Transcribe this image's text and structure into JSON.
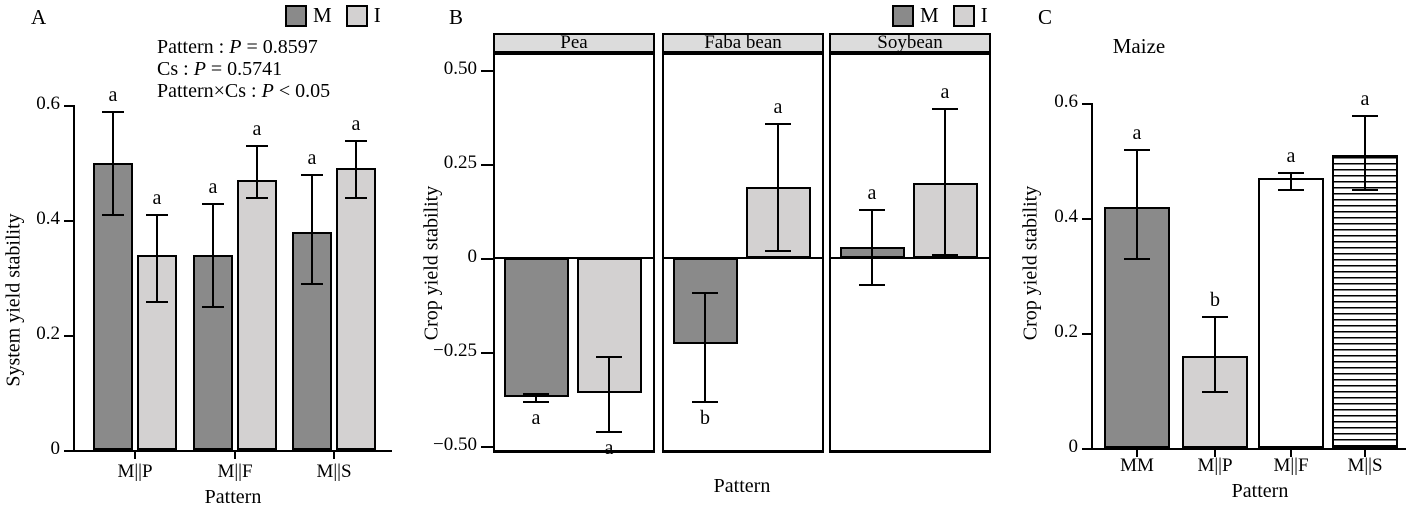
{
  "panel_a": {
    "label": "A",
    "legend": {
      "m": "M",
      "i": "I"
    },
    "stats_lines": [
      "Pattern : P = 0.8597",
      "Cs : P = 0.5741",
      "Pattern×Cs : P < 0.05"
    ],
    "ylabel": "System yield stability",
    "xlabel": "Pattern"
  },
  "panel_b": {
    "label": "B",
    "legend": {
      "m": "M",
      "i": "I"
    },
    "ylabel": "Crop yield stability",
    "xlabel": "Pattern"
  },
  "panel_c": {
    "label": "C",
    "title": "Maize",
    "ylabel": "Crop yield stability",
    "xlabel": "Pattern"
  },
  "colors": {
    "m_fill": "#8a8a8a",
    "i_fill": "#d3d1d1",
    "strip_bg": "#dcdcdc",
    "bar_border": "#000000",
    "white": "#ffffff"
  },
  "chart_data": [
    {
      "id": "A",
      "type": "bar",
      "title": "",
      "annotations": [
        "Pattern : P = 0.8597",
        "Cs : P = 0.5741",
        "Pattern×Cs : P < 0.05"
      ],
      "xlabel": "Pattern",
      "ylabel": "System yield stability",
      "ylim": [
        0,
        0.6
      ],
      "yticks": [
        0,
        0.2,
        0.4,
        0.6
      ],
      "ytick_labels": [
        "0",
        "0.2",
        "0.4",
        "0.6"
      ],
      "categories": [
        "M||P",
        "M||F",
        "M||S"
      ],
      "legend_position": "top",
      "grid": false,
      "series": [
        {
          "name": "M",
          "values": [
            0.5,
            0.34,
            0.38
          ],
          "err_low": [
            0.41,
            0.25,
            0.29
          ],
          "err_high": [
            0.59,
            0.43,
            0.48
          ],
          "letters": [
            "a",
            "a",
            "a"
          ]
        },
        {
          "name": "I",
          "values": [
            0.34,
            0.47,
            0.49
          ],
          "err_low": [
            0.26,
            0.44,
            0.44
          ],
          "err_high": [
            0.41,
            0.53,
            0.54
          ],
          "letters": [
            "a",
            "a",
            "a"
          ]
        }
      ]
    },
    {
      "id": "B",
      "type": "bar",
      "faceted": true,
      "facets": [
        "Pea",
        "Faba bean",
        "Soybean"
      ],
      "xlabel": "Pattern",
      "ylabel": "Crop yield stability",
      "ylim": [
        -0.5,
        0.5
      ],
      "yticks": [
        0.5,
        0.25,
        0,
        -0.25,
        -0.5
      ],
      "ytick_labels": [
        "0.50",
        "0.25",
        "0",
        "−0.25",
        "−0.50"
      ],
      "legend_position": "top",
      "grid": false,
      "series": [
        {
          "name": "M",
          "values": [
            -0.37,
            -0.23,
            0.03
          ],
          "err_low": [
            -0.38,
            -0.38,
            -0.07
          ],
          "err_high": [
            -0.36,
            -0.09,
            0.13
          ],
          "letters": [
            "a",
            "b",
            "a"
          ]
        },
        {
          "name": "I",
          "values": [
            -0.36,
            0.19,
            0.2
          ],
          "err_low": [
            -0.46,
            0.02,
            0.01
          ],
          "err_high": [
            -0.26,
            0.36,
            0.4
          ],
          "letters": [
            "a",
            "a",
            "a"
          ]
        }
      ]
    },
    {
      "id": "C",
      "type": "bar",
      "title": "Maize",
      "xlabel": "Pattern",
      "ylabel": "Crop yield stability",
      "ylim": [
        0,
        0.6
      ],
      "yticks": [
        0,
        0.2,
        0.4,
        0.6
      ],
      "ytick_labels": [
        "0",
        "0.2",
        "0.4",
        "0.6"
      ],
      "categories": [
        "MM",
        "M||P",
        "M||F",
        "M||S"
      ],
      "values": [
        0.42,
        0.16,
        0.47,
        0.51
      ],
      "err_low": [
        0.33,
        0.1,
        0.45,
        0.45
      ],
      "err_high": [
        0.52,
        0.23,
        0.48,
        0.58
      ],
      "letters": [
        "a",
        "b",
        "a",
        "a"
      ],
      "fills": [
        "m",
        "i",
        "white",
        "stripes"
      ],
      "grid": false
    }
  ]
}
